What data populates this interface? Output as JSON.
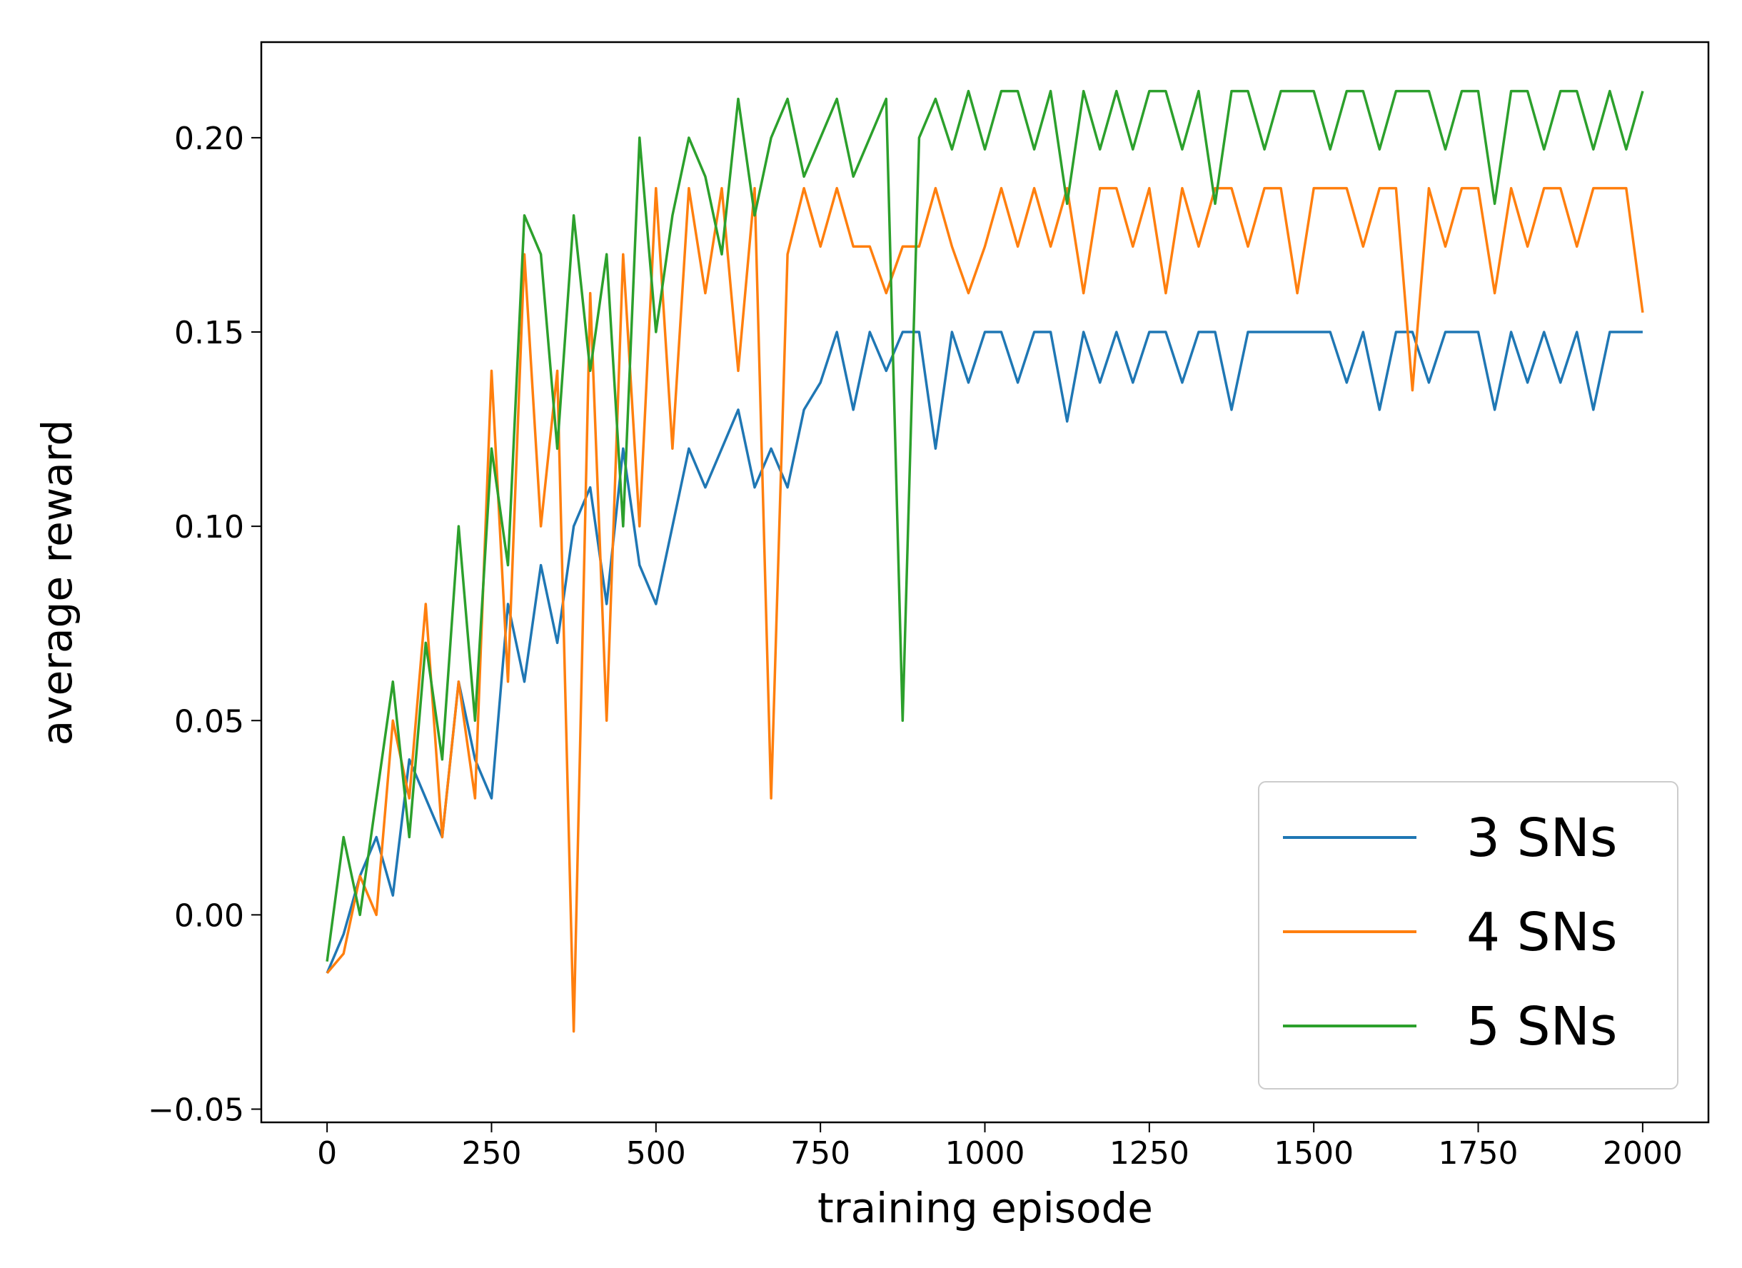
{
  "chart_data": {
    "type": "line",
    "x_label": "training episode",
    "y_label": "average reward",
    "x": [
      0,
      25,
      50,
      75,
      100,
      125,
      150,
      175,
      200,
      225,
      250,
      275,
      300,
      325,
      350,
      375,
      400,
      425,
      450,
      475,
      500,
      525,
      550,
      575,
      600,
      625,
      650,
      675,
      700,
      725,
      750,
      775,
      800,
      825,
      850,
      875,
      900,
      925,
      950,
      975,
      1000,
      1025,
      1050,
      1075,
      1100,
      1125,
      1150,
      1175,
      1200,
      1225,
      1250,
      1275,
      1300,
      1325,
      1350,
      1375,
      1400,
      1425,
      1450,
      1475,
      1500,
      1525,
      1550,
      1575,
      1600,
      1625,
      1650,
      1675,
      1700,
      1725,
      1750,
      1775,
      1800,
      1825,
      1850,
      1875,
      1900,
      1925,
      1950,
      1975,
      2000
    ],
    "series": [
      {
        "name": "3 SNs",
        "color": "#1f77b4",
        "values": [
          -0.015,
          -0.005,
          0.01,
          0.02,
          0.005,
          0.04,
          0.03,
          0.02,
          0.06,
          0.04,
          0.03,
          0.08,
          0.06,
          0.09,
          0.07,
          0.1,
          0.11,
          0.08,
          0.12,
          0.09,
          0.08,
          0.1,
          0.12,
          0.11,
          0.12,
          0.13,
          0.11,
          0.12,
          0.11,
          0.13,
          0.137,
          0.15,
          0.13,
          0.15,
          0.14,
          0.15,
          0.15,
          0.12,
          0.15,
          0.137,
          0.15,
          0.15,
          0.137,
          0.15,
          0.15,
          0.127,
          0.15,
          0.137,
          0.15,
          0.137,
          0.15,
          0.15,
          0.137,
          0.15,
          0.15,
          0.13,
          0.15,
          0.15,
          0.15,
          0.15,
          0.15,
          0.15,
          0.137,
          0.15,
          0.13,
          0.15,
          0.15,
          0.137,
          0.15,
          0.15,
          0.15,
          0.13,
          0.15,
          0.137,
          0.15,
          0.137,
          0.15,
          0.13,
          0.15,
          0.15,
          0.15
        ]
      },
      {
        "name": "4 SNs",
        "color": "#ff7f0e",
        "values": [
          -0.015,
          -0.01,
          0.01,
          0.0,
          0.05,
          0.03,
          0.08,
          0.02,
          0.06,
          0.03,
          0.14,
          0.06,
          0.17,
          0.1,
          0.14,
          -0.03,
          0.16,
          0.05,
          0.17,
          0.1,
          0.187,
          0.12,
          0.187,
          0.16,
          0.187,
          0.14,
          0.187,
          0.03,
          0.17,
          0.187,
          0.172,
          0.187,
          0.172,
          0.172,
          0.16,
          0.172,
          0.172,
          0.187,
          0.172,
          0.16,
          0.172,
          0.187,
          0.172,
          0.187,
          0.172,
          0.187,
          0.16,
          0.187,
          0.187,
          0.172,
          0.187,
          0.16,
          0.187,
          0.172,
          0.187,
          0.187,
          0.172,
          0.187,
          0.187,
          0.16,
          0.187,
          0.187,
          0.187,
          0.172,
          0.187,
          0.187,
          0.135,
          0.187,
          0.172,
          0.187,
          0.187,
          0.16,
          0.187,
          0.172,
          0.187,
          0.187,
          0.172,
          0.187,
          0.187,
          0.187,
          0.155
        ]
      },
      {
        "name": "5 SNs",
        "color": "#2ca02c",
        "values": [
          -0.012,
          0.02,
          0.0,
          0.03,
          0.06,
          0.02,
          0.07,
          0.04,
          0.1,
          0.05,
          0.12,
          0.09,
          0.18,
          0.17,
          0.12,
          0.18,
          0.14,
          0.17,
          0.1,
          0.2,
          0.15,
          0.18,
          0.2,
          0.19,
          0.17,
          0.21,
          0.18,
          0.2,
          0.21,
          0.19,
          0.2,
          0.21,
          0.19,
          0.2,
          0.21,
          0.05,
          0.2,
          0.21,
          0.197,
          0.212,
          0.197,
          0.212,
          0.212,
          0.197,
          0.212,
          0.183,
          0.212,
          0.197,
          0.212,
          0.197,
          0.212,
          0.212,
          0.197,
          0.212,
          0.183,
          0.212,
          0.212,
          0.197,
          0.212,
          0.212,
          0.212,
          0.197,
          0.212,
          0.212,
          0.197,
          0.212,
          0.212,
          0.212,
          0.197,
          0.212,
          0.212,
          0.183,
          0.212,
          0.212,
          0.197,
          0.212,
          0.212,
          0.197,
          0.212,
          0.197,
          0.212
        ]
      }
    ],
    "xlim": [
      -100,
      2100
    ],
    "ylim": [
      -0.0534,
      0.2246
    ],
    "xticks": [
      0,
      250,
      500,
      750,
      1000,
      1250,
      1500,
      1750,
      2000
    ],
    "yticks": [
      {
        "value": -0.05,
        "label": "−0.05"
      },
      {
        "value": 0,
        "label": "0.00"
      },
      {
        "value": 0.05,
        "label": "0.05"
      },
      {
        "value": 0.1,
        "label": "0.10"
      },
      {
        "value": 0.15,
        "label": "0.15"
      },
      {
        "value": 0.2,
        "label": "0.20"
      }
    ],
    "legend": "lower right",
    "grid": false
  }
}
